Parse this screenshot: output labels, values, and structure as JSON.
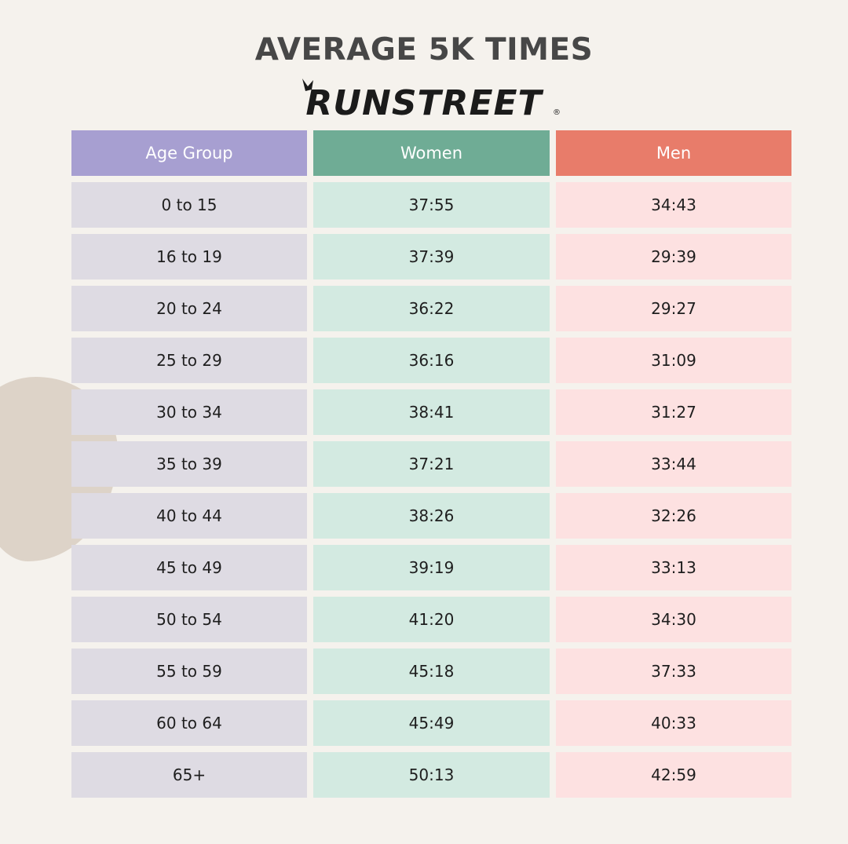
{
  "chart_data": {
    "type": "table",
    "title": "AVERAGE 5K TIMES",
    "brand": "RUNSTREET",
    "columns": [
      "Age Group",
      "Women",
      "Men"
    ],
    "rows": [
      [
        "0 to 15",
        "37:55",
        "34:43"
      ],
      [
        "16 to 19",
        "37:39",
        "29:39"
      ],
      [
        "20 to 24",
        "36:22",
        "29:27"
      ],
      [
        "25 to 29",
        "36:16",
        "31:09"
      ],
      [
        "30 to 34",
        "38:41",
        "31:27"
      ],
      [
        "35 to 39",
        "37:21",
        "33:44"
      ],
      [
        "40 to 44",
        "38:26",
        "32:26"
      ],
      [
        "45 to 49",
        "39:19",
        "33:13"
      ],
      [
        "50 to 54",
        "41:20",
        "34:30"
      ],
      [
        "55 to 59",
        "45:18",
        "37:33"
      ],
      [
        "60 to 64",
        "45:49",
        "40:33"
      ],
      [
        "65+",
        "50:13",
        "42:59"
      ]
    ],
    "colors": {
      "age_header": "#a79fd1",
      "women_header": "#6fac95",
      "men_header": "#e87c6a",
      "age_cell": "#dedbe3",
      "women_cell": "#d3eae1",
      "men_cell": "#fde1e1"
    }
  }
}
